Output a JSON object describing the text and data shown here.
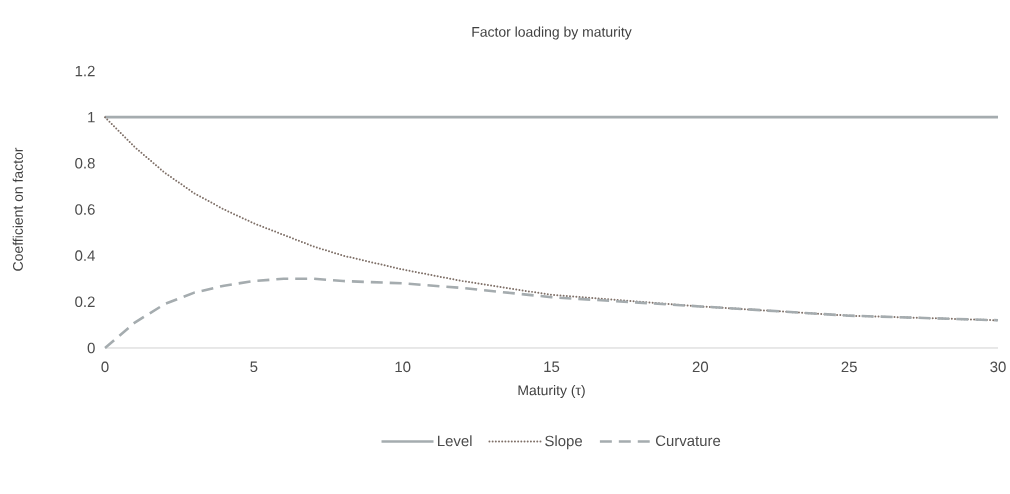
{
  "chart_data": {
    "type": "line",
    "title": "Factor loading by maturity",
    "xlabel": "Maturity (τ)",
    "ylabel": "Coefficient on factor",
    "x": [
      0,
      1,
      2,
      3,
      4,
      5,
      6,
      7,
      8,
      10,
      12,
      15,
      20,
      25,
      30
    ],
    "series": [
      {
        "name": "Level",
        "color": "#a5acaf",
        "line_style": "solid",
        "values": [
          1,
          1,
          1,
          1,
          1,
          1,
          1,
          1,
          1,
          1,
          1,
          1,
          1,
          1,
          1
        ]
      },
      {
        "name": "Slope",
        "color": "#7f7068",
        "line_style": "dotted",
        "values": [
          1,
          0.87,
          0.76,
          0.67,
          0.6,
          0.54,
          0.49,
          0.44,
          0.4,
          0.34,
          0.29,
          0.23,
          0.18,
          0.14,
          0.12
        ]
      },
      {
        "name": "Curvature",
        "color": "#a5acaf",
        "line_style": "dashed",
        "values": [
          0,
          0.11,
          0.19,
          0.24,
          0.27,
          0.29,
          0.3,
          0.3,
          0.29,
          0.28,
          0.26,
          0.22,
          0.18,
          0.14,
          0.12
        ]
      }
    ],
    "xlim": [
      0,
      30
    ],
    "xticks": [
      0,
      5,
      10,
      15,
      20,
      25,
      30
    ],
    "ylim": [
      0,
      1.2
    ],
    "yticks": [
      0,
      0.2,
      0.4,
      0.6,
      0.8,
      1,
      1.2
    ],
    "grid": false,
    "legend": "bottom",
    "marker": "none"
  }
}
